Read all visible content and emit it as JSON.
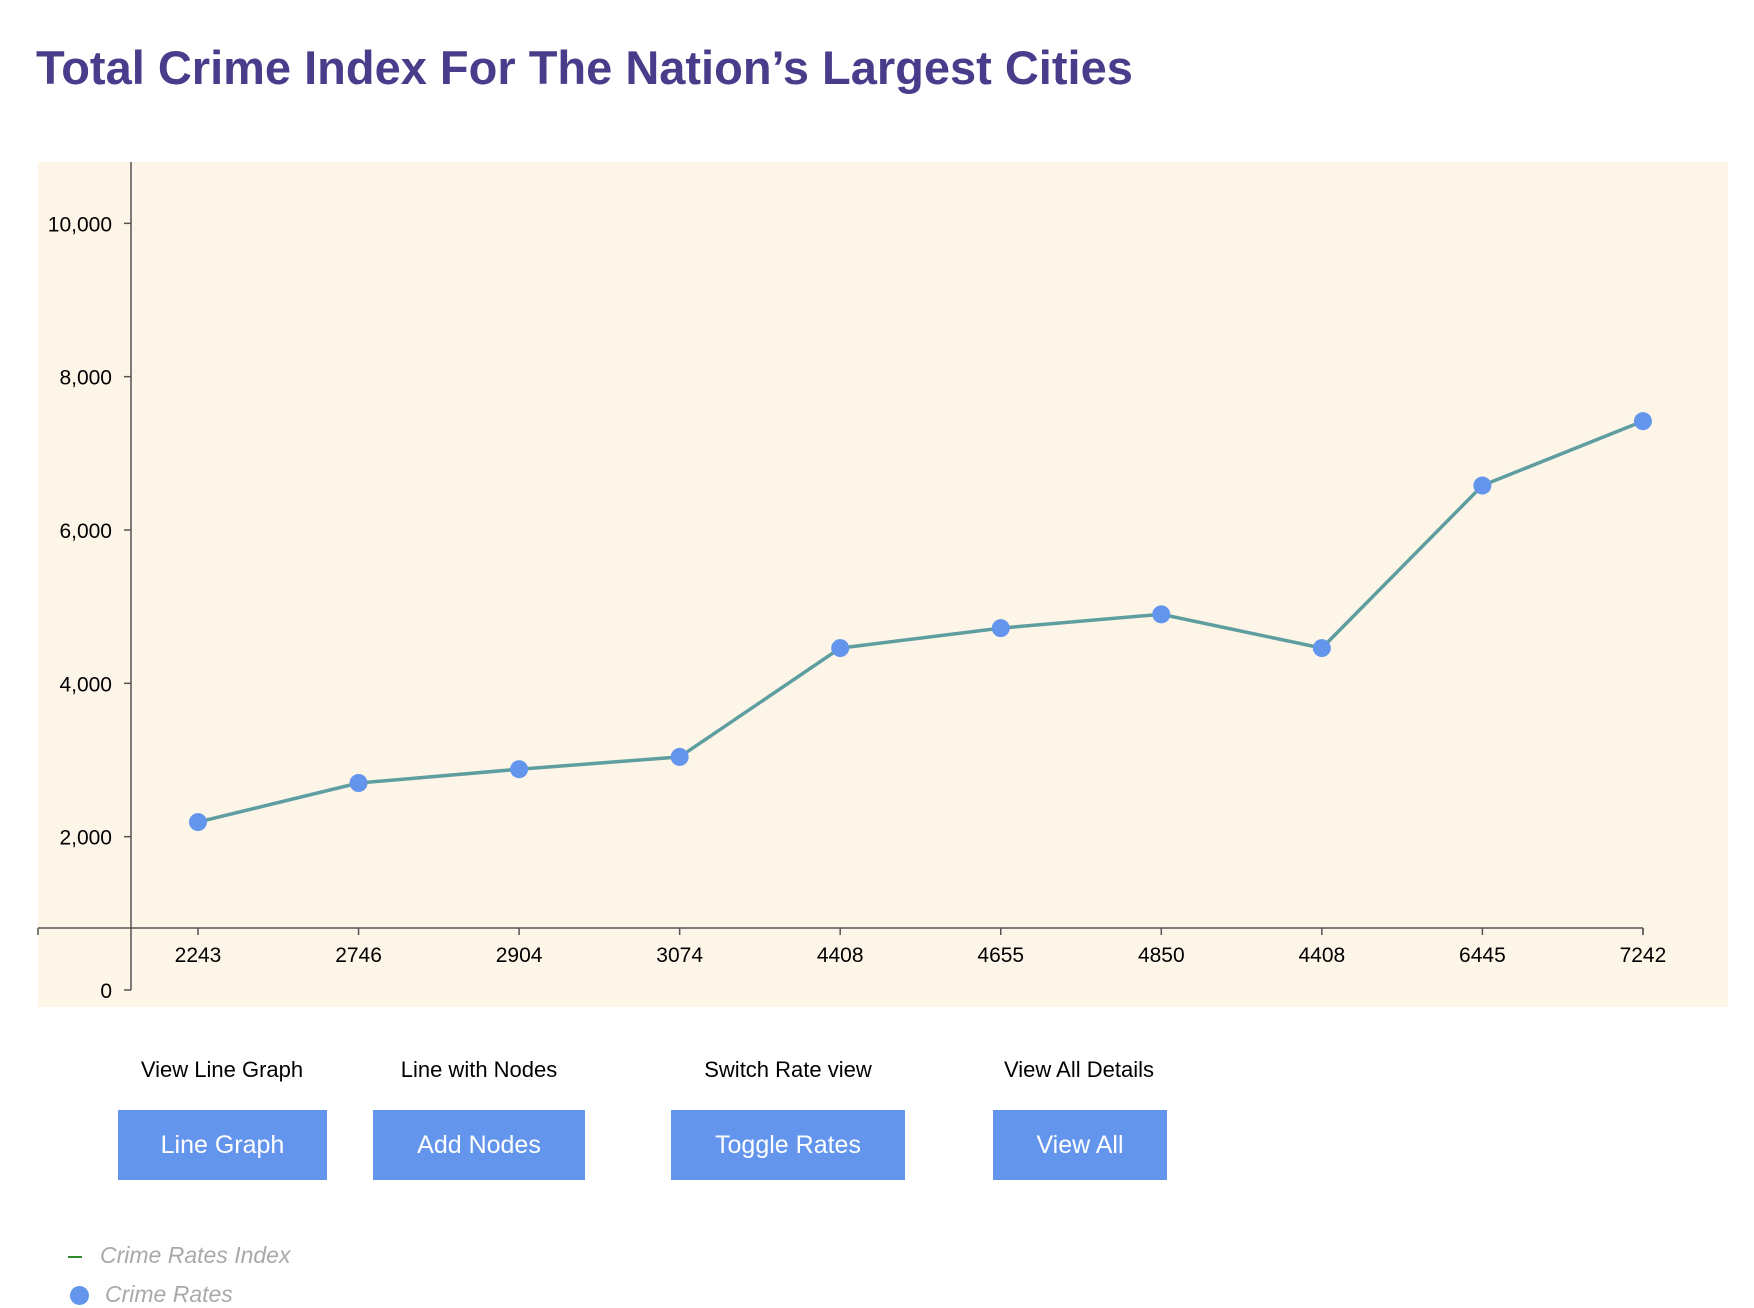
{
  "title": "Total Crime Index For The Nation’s Largest Cities",
  "colors": {
    "title": "#483d8b",
    "plot_background": "#fcf5e8",
    "line": "#5f9ea0",
    "node": "#6495ed",
    "button": "#6495ed",
    "legend_line": "#2e8b2e",
    "legend_text": "#a9a9a9"
  },
  "chart_data": {
    "type": "line",
    "categories": [
      "2243",
      "2746",
      "2904",
      "3074",
      "4408",
      "4655",
      "4850",
      "4408",
      "6445",
      "7242"
    ],
    "values": [
      2190,
      2700,
      2880,
      3040,
      4460,
      4720,
      4900,
      4460,
      6580,
      7420
    ],
    "y_ticks": [
      {
        "value": 0,
        "label": "0"
      },
      {
        "value": 2000,
        "label": "2,000"
      },
      {
        "value": 4000,
        "label": "4,000"
      },
      {
        "value": 6000,
        "label": "6,000"
      },
      {
        "value": 8000,
        "label": "8,000"
      },
      {
        "value": 10000,
        "label": "10,000"
      }
    ],
    "ylim": [
      0,
      10800
    ],
    "grid": false,
    "legend_position": "bottom-left"
  },
  "controls": [
    {
      "label": "View Line Graph",
      "button": "Line Graph"
    },
    {
      "label": "Line with Nodes",
      "button": "Add Nodes"
    },
    {
      "label": "Switch Rate view",
      "button": "Toggle Rates"
    },
    {
      "label": "View All Details",
      "button": "View All"
    }
  ],
  "legend": [
    {
      "label": "Crime Rates Index",
      "icon": "line-swatch-icon"
    },
    {
      "label": "Crime Rates",
      "icon": "dot-swatch-icon"
    }
  ]
}
